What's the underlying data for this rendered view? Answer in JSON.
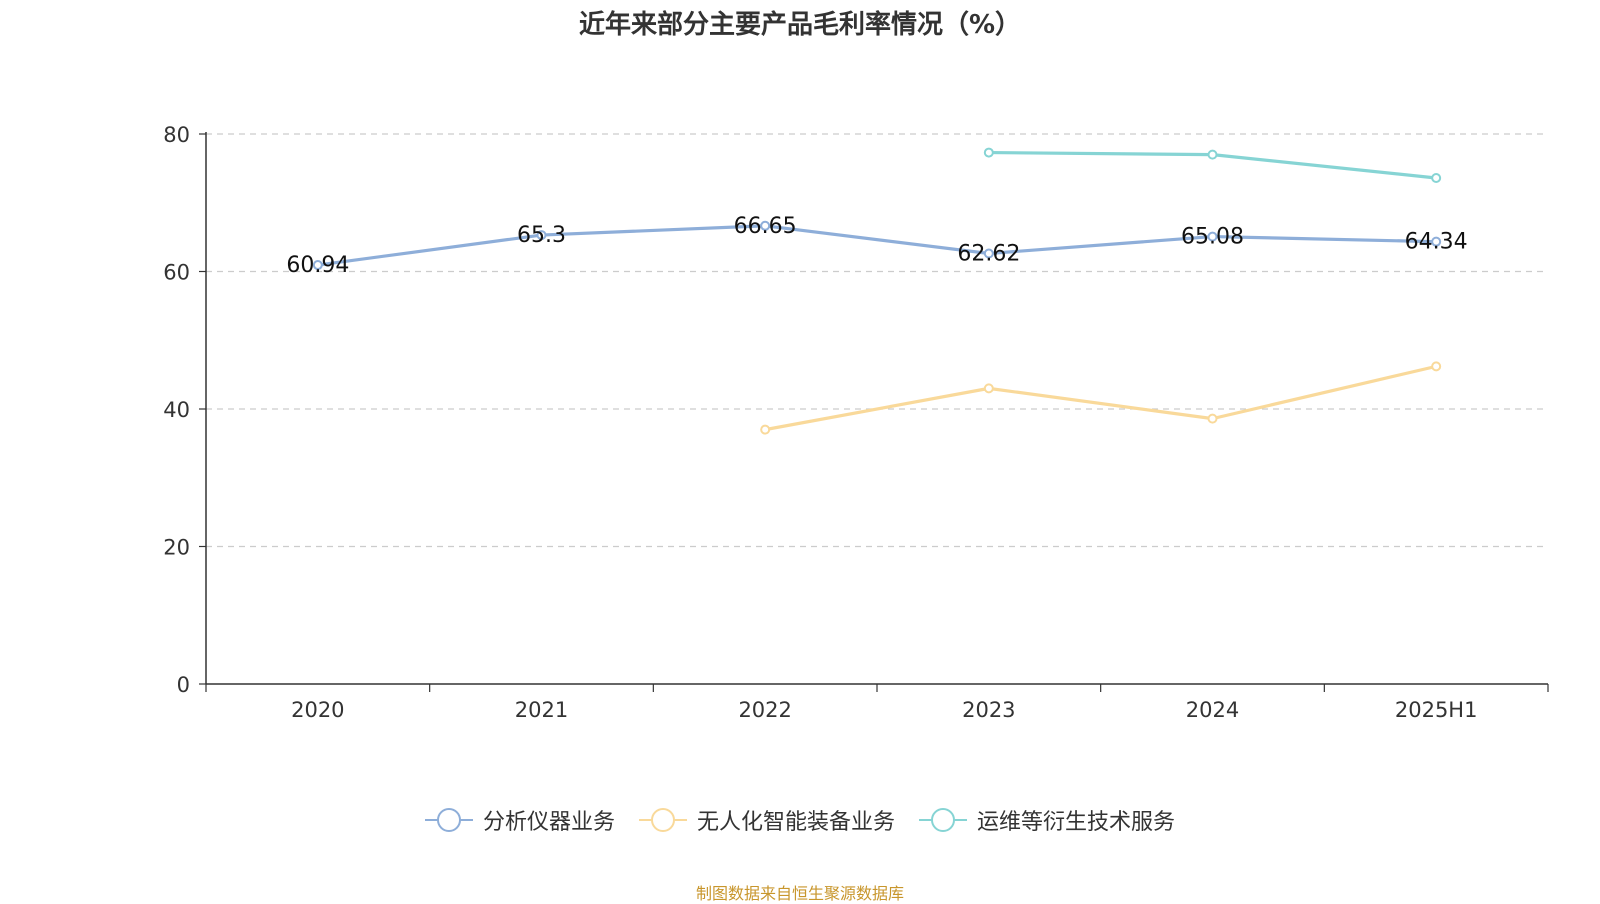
{
  "chart_data": {
    "type": "line",
    "title": "近年来部分主要产品毛利率情况（%）",
    "categories": [
      "2020",
      "2021",
      "2022",
      "2023",
      "2024",
      "2025H1"
    ],
    "ylim": [
      0,
      80
    ],
    "yticks": [
      0,
      20,
      40,
      60,
      80
    ],
    "grid": true,
    "legend_position": "bottom",
    "series": [
      {
        "name": "分析仪器业务",
        "color": "#8eaed9",
        "show_labels": true,
        "values": [
          60.94,
          65.3,
          66.65,
          62.62,
          65.08,
          64.34
        ],
        "labels": [
          "60.94",
          "65.3",
          "66.65",
          "62.62",
          "65.08",
          "64.34"
        ]
      },
      {
        "name": "无人化智能装备业务",
        "color": "#f9d99a",
        "show_labels": false,
        "values": [
          null,
          null,
          37.0,
          43.0,
          38.6,
          46.2
        ]
      },
      {
        "name": "运维等衍生技术服务",
        "color": "#86d4d4",
        "show_labels": false,
        "values": [
          null,
          null,
          null,
          77.3,
          77.0,
          73.6
        ]
      }
    ]
  },
  "source_text": "制图数据来自恒生聚源数据库"
}
